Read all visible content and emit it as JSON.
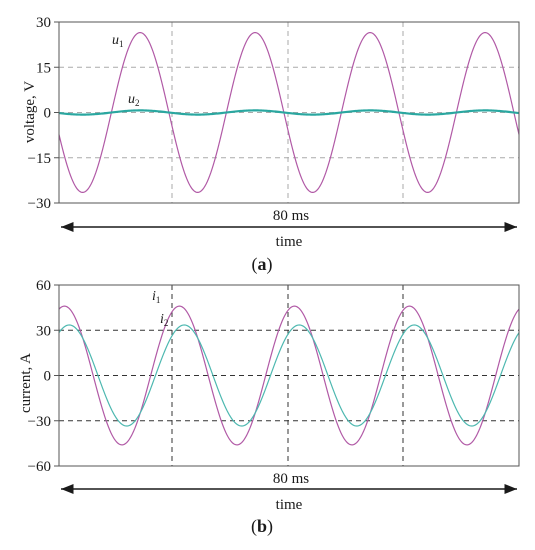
{
  "chart_data": [
    {
      "type": "line",
      "panel_label": "a",
      "panel_label_bold": "a",
      "ylabel": "voltage, V",
      "xlabel": "time",
      "span_label": "80 ms",
      "x_range_ms": [
        0,
        80
      ],
      "ylim": [
        -30,
        30
      ],
      "yticks": [
        -30,
        -15,
        0,
        15,
        30
      ],
      "grid": true,
      "series": [
        {
          "name": "u",
          "subscript": "1",
          "color": "#b15aa6",
          "amplitude": 26.5,
          "period_ms": 20,
          "phase_deg": 196
        },
        {
          "name": "u",
          "subscript": "2",
          "color": "#2aa7a0",
          "amplitude": 0.7,
          "period_ms": 20,
          "phase_deg": 196
        }
      ]
    },
    {
      "type": "line",
      "panel_label": "b",
      "panel_label_bold": "b",
      "ylabel": "current, A",
      "xlabel": "time",
      "span_label": "80 ms",
      "x_range_ms": [
        0,
        80
      ],
      "ylim": [
        -60,
        60
      ],
      "yticks": [
        -60,
        -30,
        0,
        30,
        60
      ],
      "grid": true,
      "series": [
        {
          "name": "i",
          "subscript": "1",
          "color": "#b15aa6",
          "amplitude": 46,
          "period_ms": 20,
          "phase_deg": 73
        },
        {
          "name": "i",
          "subscript": "2",
          "color": "#4db8b0",
          "amplitude": 33.5,
          "period_ms": 20,
          "phase_deg": 58
        }
      ]
    }
  ]
}
